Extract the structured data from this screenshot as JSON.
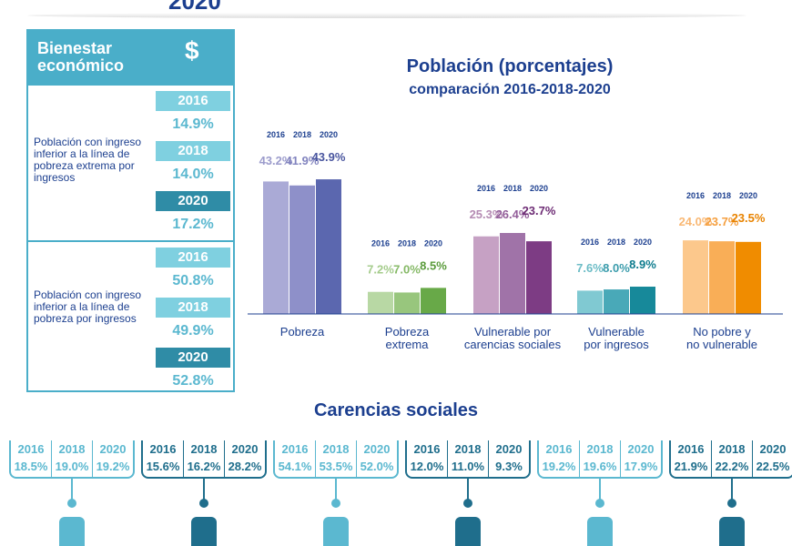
{
  "header": {
    "year": "2020"
  },
  "panel": {
    "title_line1": "Bienestar",
    "title_line2": "económico",
    "icon": "dollar-icon",
    "sections": [
      {
        "label": "Población con ingreso inferior a la línea de pobreza extrema por ingresos",
        "items": [
          {
            "year": "2016",
            "value": "14.9%"
          },
          {
            "year": "2018",
            "value": "14.0%"
          },
          {
            "year": "2020",
            "value": "17.2%"
          }
        ]
      },
      {
        "label": "Población con ingreso inferior a la línea de pobreza por ingresos",
        "items": [
          {
            "year": "2016",
            "value": "50.8%"
          },
          {
            "year": "2018",
            "value": "49.9%"
          },
          {
            "year": "2020",
            "value": "52.8%"
          }
        ]
      }
    ]
  },
  "chart_data": {
    "type": "bar",
    "title": "Población (porcentajes)",
    "subtitle": "comparación 2016-2018-2020",
    "categories": [
      "Pobreza",
      "Pobreza extrema",
      "Vulnerable por carencias sociales",
      "Vulnerable por ingresos",
      "No pobre y no vulnerable"
    ],
    "category_lines": [
      [
        "Pobreza"
      ],
      [
        "Pobreza",
        "extrema"
      ],
      [
        "Vulnerable por",
        "carencias sociales"
      ],
      [
        "Vulnerable",
        "por ingresos"
      ],
      [
        "No pobre y",
        "no vulnerable"
      ]
    ],
    "years": [
      "2016",
      "2018",
      "2020"
    ],
    "values": [
      [
        43.2,
        41.9,
        43.9
      ],
      [
        7.2,
        7.0,
        8.5
      ],
      [
        25.3,
        26.4,
        23.7
      ],
      [
        7.6,
        8.0,
        8.9
      ],
      [
        24.0,
        23.7,
        23.5
      ]
    ],
    "colors": [
      [
        "#aaaad6",
        "#8e90c9",
        "#5b67af"
      ],
      [
        "#b8d8a4",
        "#98c67d",
        "#68a948"
      ],
      [
        "#c6a1c4",
        "#a073a8",
        "#7d3c84"
      ],
      [
        "#80c9d2",
        "#49a9b8",
        "#17899a"
      ],
      [
        "#fcc88c",
        "#f9ae57",
        "#f08c00"
      ]
    ],
    "label_colors": [
      [
        "#9c9ccc",
        "#8284bf",
        "#4a569f"
      ],
      [
        "#a5cc8c",
        "#85b966",
        "#5a9b3b"
      ],
      [
        "#b58bb3",
        "#935f9a",
        "#6e2d75"
      ],
      [
        "#6cbcc6",
        "#3b9cac",
        "#0e7c8e"
      ],
      [
        "#f9b874",
        "#f59f3f",
        "#e88300"
      ]
    ],
    "ylim": [
      0,
      50
    ]
  },
  "carencias": {
    "title": "Carencias sociales",
    "groups": [
      {
        "icon": "education-icon",
        "style": "light",
        "values": [
          "18.5%",
          "19.0%",
          "19.2%"
        ]
      },
      {
        "icon": "health-icon",
        "style": "dark",
        "values": [
          "15.6%",
          "16.2%",
          "28.2%"
        ]
      },
      {
        "icon": "social-security-icon",
        "style": "light",
        "values": [
          "54.1%",
          "53.5%",
          "52.0%"
        ]
      },
      {
        "icon": "housing-quality-icon",
        "style": "dark",
        "values": [
          "12.0%",
          "11.0%",
          "9.3%"
        ]
      },
      {
        "icon": "housing-services-icon",
        "style": "light",
        "values": [
          "19.2%",
          "19.6%",
          "17.9%"
        ]
      },
      {
        "icon": "food-icon",
        "style": "dark",
        "values": [
          "21.9%",
          "22.2%",
          "22.5%"
        ]
      }
    ],
    "years": [
      "2016",
      "2018",
      "2020"
    ],
    "colors": {
      "light": "#5bb8d0",
      "dark": "#1f6e8c"
    }
  }
}
